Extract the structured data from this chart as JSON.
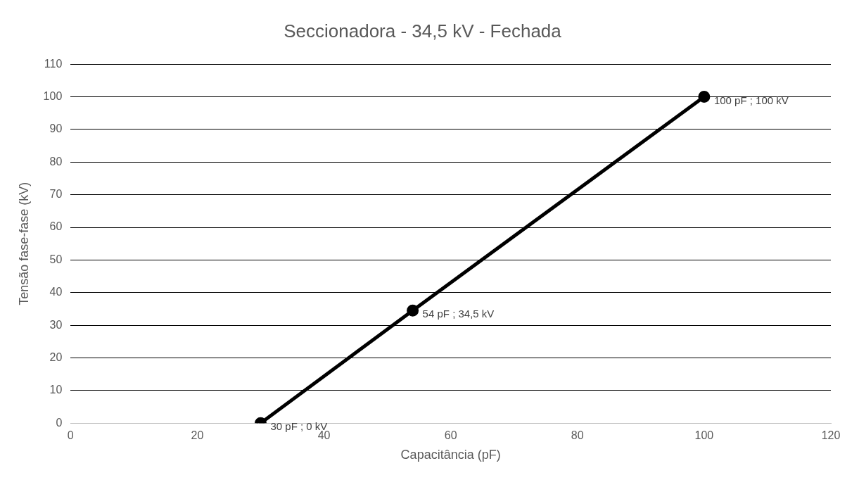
{
  "chart_data": {
    "type": "line",
    "title": "Seccionadora - 34,5 kV - Fechada",
    "xlabel": "Capacitância (pF)",
    "ylabel": "Tensão fase-fase (kV)",
    "x": [
      30,
      54,
      100
    ],
    "series": [
      {
        "color": "#000000",
        "values": [
          0,
          34.5,
          100
        ],
        "value_labels": [
          "30 pF ; 0 kV",
          "54 pF ; 34,5 kV",
          "100 pF ; 100 kV"
        ]
      }
    ],
    "xlim": [
      0,
      120
    ],
    "xticks": [
      0,
      20,
      40,
      60,
      80,
      100,
      120
    ],
    "ylim": [
      0,
      110
    ],
    "yticks": [
      0,
      10,
      20,
      30,
      40,
      50,
      60,
      70,
      80,
      90,
      100,
      110
    ],
    "grid": "y",
    "legend": false,
    "marker": "circle",
    "line_style": "solid"
  }
}
